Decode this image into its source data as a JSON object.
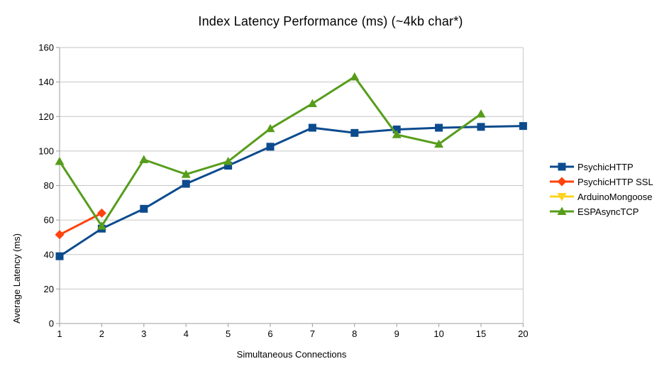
{
  "chart_data": {
    "type": "line",
    "title": "Index Latency Performance (ms) (~4kb char*)",
    "xlabel": "Simultaneous Connections",
    "ylabel": "Average Latency (ms)",
    "categories": [
      "1",
      "2",
      "3",
      "4",
      "5",
      "6",
      "7",
      "8",
      "9",
      "10",
      "15",
      "20"
    ],
    "ylim": [
      0,
      160
    ],
    "ytick_step": 20,
    "grid": "horizontal",
    "legend_position": "right",
    "series": [
      {
        "name": "PsychicHTTP",
        "color": "#0C4B8E",
        "marker": "square",
        "values": [
          39,
          55,
          66.5,
          81,
          91.5,
          102.5,
          113.5,
          110.5,
          112.5,
          113.5,
          114,
          114.5
        ]
      },
      {
        "name": "PsychicHTTP SSL",
        "color": "#FF420E",
        "marker": "diamond",
        "values": [
          51.5,
          64,
          null,
          null,
          null,
          null,
          null,
          null,
          null,
          null,
          null,
          null
        ]
      },
      {
        "name": "ArduinoMongoose",
        "color": "#FFD320",
        "marker": "triangle-down",
        "values": [
          null,
          null,
          null,
          null,
          null,
          null,
          null,
          null,
          null,
          null,
          null,
          null
        ]
      },
      {
        "name": "ESPAsyncTCP",
        "color": "#579D1C",
        "marker": "triangle-up",
        "values": [
          94,
          56.5,
          95,
          86.5,
          94,
          113,
          127.5,
          143,
          109.5,
          104,
          121.5,
          null
        ]
      }
    ]
  }
}
